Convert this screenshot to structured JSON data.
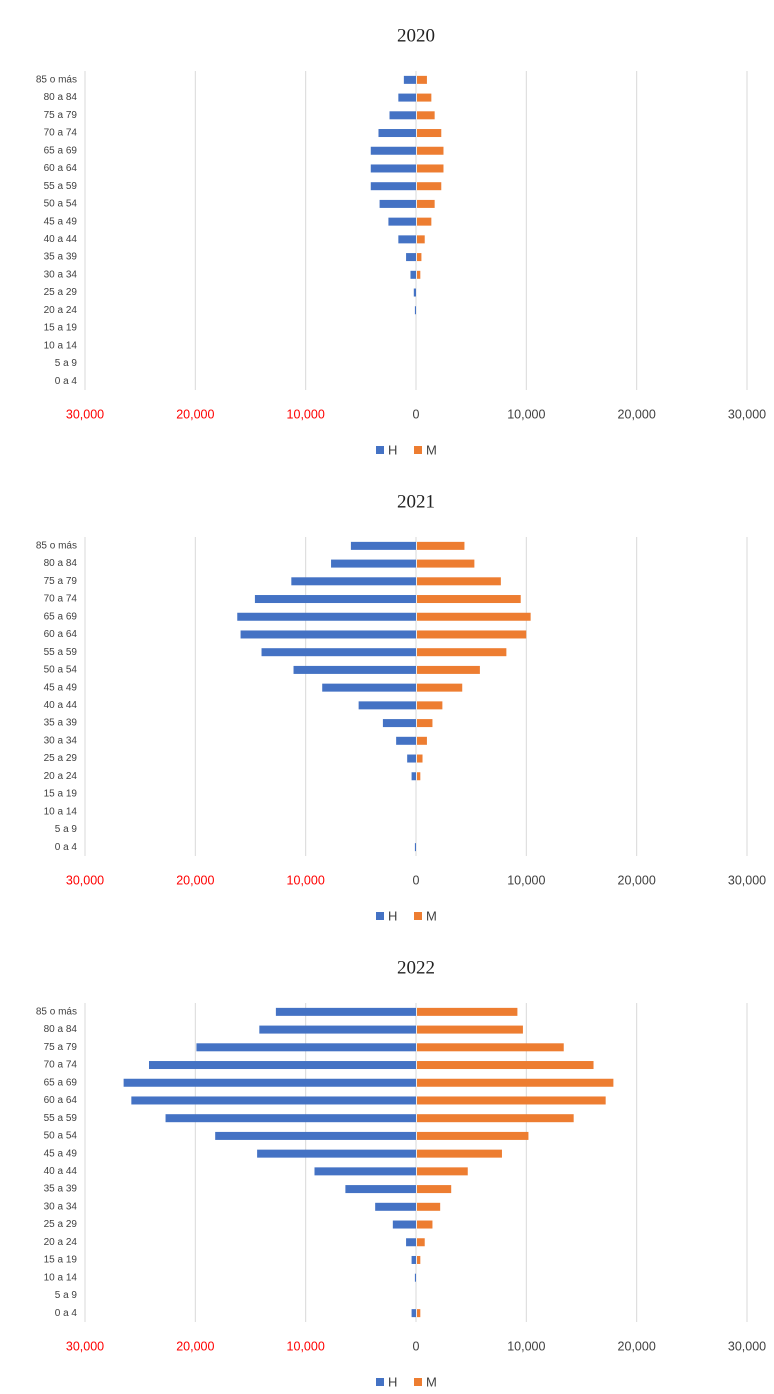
{
  "chart_data": [
    {
      "type": "bar",
      "orientation": "horizontal",
      "title": "2020",
      "categories": [
        "85 o más",
        "80 a 84",
        "75 a 79",
        "70 a 74",
        "65 a 69",
        "60 a 64",
        "55 a 59",
        "50 a 54",
        "45 a 49",
        "40 a 44",
        "35 a 39",
        "30 a 34",
        "25 a 29",
        "20 a 24",
        "15 a 19",
        "10 a 14",
        "5 a 9",
        "0 a 4"
      ],
      "series": [
        {
          "name": "H",
          "color": "#4472c4",
          "values": [
            -1100,
            -1600,
            -2400,
            -3400,
            -4100,
            -4100,
            -4100,
            -3300,
            -2500,
            -1600,
            -900,
            -500,
            -200,
            -100,
            0,
            0,
            0,
            0
          ]
        },
        {
          "name": "M",
          "color": "#ed7d31",
          "values": [
            900,
            1300,
            1600,
            2200,
            2400,
            2400,
            2200,
            1600,
            1300,
            700,
            400,
            300,
            0,
            0,
            0,
            0,
            0,
            0
          ]
        }
      ],
      "xlim": [
        -30000,
        30000
      ],
      "xticks": [
        {
          "value": -30000,
          "label": "30,000"
        },
        {
          "value": -20000,
          "label": "20,000"
        },
        {
          "value": -10000,
          "label": "10,000"
        },
        0,
        {
          "value": 10000,
          "label": "10,000"
        },
        {
          "value": 20000,
          "label": "20,000"
        },
        {
          "value": 30000,
          "label": "30,000"
        }
      ],
      "negative_tick_color": "#ff0000",
      "grid": true,
      "legend": "bottom"
    },
    {
      "type": "bar",
      "orientation": "horizontal",
      "title": "2021",
      "categories": [
        "85 o más",
        "80 a 84",
        "75 a 79",
        "70 a 74",
        "65 a 69",
        "60 a 64",
        "55 a 59",
        "50 a 54",
        "45 a 49",
        "40 a 44",
        "35 a 39",
        "30 a 34",
        "25 a 29",
        "20 a 24",
        "15 a 19",
        "10 a 14",
        "5 a 9",
        "0 a 4"
      ],
      "series": [
        {
          "name": "H",
          "color": "#4472c4",
          "values": [
            -5900,
            -7700,
            -11300,
            -14600,
            -16200,
            -15900,
            -14000,
            -11100,
            -8500,
            -5200,
            -3000,
            -1800,
            -800,
            -400,
            0,
            0,
            0,
            -100
          ]
        },
        {
          "name": "M",
          "color": "#ed7d31",
          "values": [
            4300,
            5200,
            7600,
            9400,
            10300,
            9900,
            8100,
            5700,
            4100,
            2300,
            1400,
            900,
            500,
            300,
            0,
            0,
            0,
            0
          ]
        }
      ],
      "xlim": [
        -30000,
        30000
      ],
      "xticks": [
        {
          "value": -30000,
          "label": "30,000"
        },
        {
          "value": -20000,
          "label": "20,000"
        },
        {
          "value": -10000,
          "label": "10,000"
        },
        0,
        {
          "value": 10000,
          "label": "10,000"
        },
        {
          "value": 20000,
          "label": "20,000"
        },
        {
          "value": 30000,
          "label": "30,000"
        }
      ],
      "negative_tick_color": "#ff0000",
      "grid": true,
      "legend": "bottom"
    },
    {
      "type": "bar",
      "orientation": "horizontal",
      "title": "2022",
      "categories": [
        "85 o más",
        "80 a 84",
        "75 a 79",
        "70 a 74",
        "65 a 69",
        "60 a 64",
        "55 a 59",
        "50 a 54",
        "45 a 49",
        "40 a 44",
        "35 a 39",
        "30 a 34",
        "25 a 29",
        "20 a 24",
        "15 a 19",
        "10 a 14",
        "5 a 9",
        "0 a 4"
      ],
      "series": [
        {
          "name": "H",
          "color": "#4472c4",
          "values": [
            -12700,
            -14200,
            -19900,
            -24200,
            -26500,
            -25800,
            -22700,
            -18200,
            -14400,
            -9200,
            -6400,
            -3700,
            -2100,
            -900,
            -400,
            -100,
            0,
            -400
          ]
        },
        {
          "name": "M",
          "color": "#ed7d31",
          "values": [
            9100,
            9600,
            13300,
            16000,
            17800,
            17100,
            14200,
            10100,
            7700,
            4600,
            3100,
            2100,
            1400,
            700,
            300,
            0,
            0,
            300
          ]
        }
      ],
      "xlim": [
        -30000,
        30000
      ],
      "xticks": [
        {
          "value": -30000,
          "label": "30,000"
        },
        {
          "value": -20000,
          "label": "20,000"
        },
        {
          "value": -10000,
          "label": "10,000"
        },
        0,
        {
          "value": 10000,
          "label": "10,000"
        },
        {
          "value": 20000,
          "label": "20,000"
        },
        {
          "value": 30000,
          "label": "30,000"
        }
      ],
      "negative_tick_color": "#ff0000",
      "grid": true,
      "legend": "bottom"
    }
  ]
}
